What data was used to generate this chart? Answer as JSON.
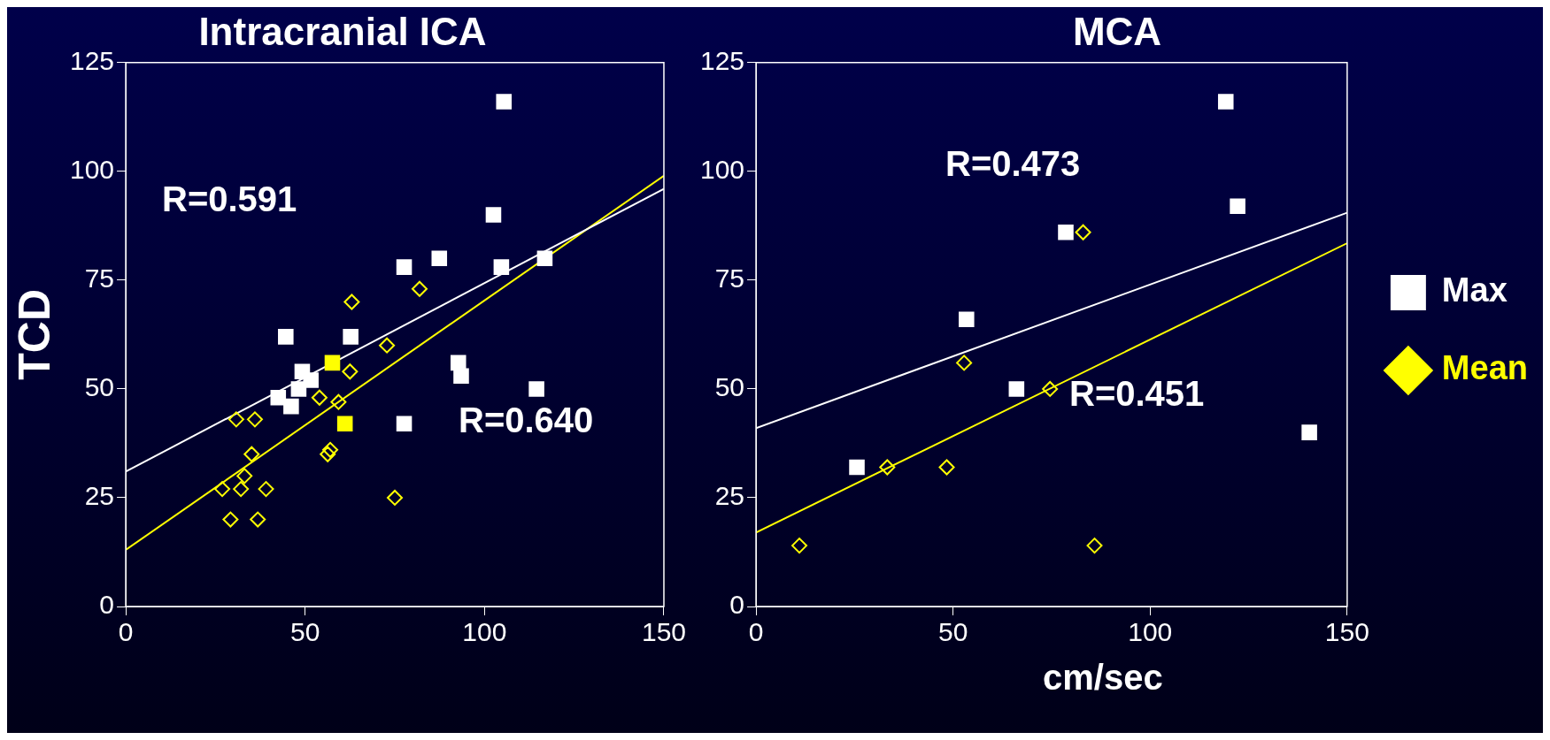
{
  "chart_data": [
    {
      "type": "scatter",
      "title": "Intracranial ICA",
      "ylabel": "TCD",
      "xlim": [
        0,
        150
      ],
      "ylim": [
        0,
        125
      ],
      "xticks": [
        0,
        50,
        100,
        150
      ],
      "yticks": [
        0,
        25,
        50,
        75,
        100,
        125
      ],
      "legend": false,
      "series": [
        {
          "marker": "square",
          "colors": [
            "#ffffff",
            "#ffffff",
            "#ffffff",
            "#ffffff",
            "#ffffff",
            "#ffffff",
            "#ffffff",
            "#ffffff",
            "#ffffff",
            "#ffffff",
            "#ffffff",
            "#ffffff",
            "#ffffff",
            "#ffffff",
            "#ffffff",
            "#ffffff",
            "#ffffff",
            "#ffff00",
            "#ffff00"
          ],
          "x": [
            105.4,
            102.5,
            77.6,
            87.4,
            104.7,
            116.8,
            44.6,
            62.7,
            92.7,
            93.5,
            114.5,
            77.6,
            49.2,
            51.6,
            48.2,
            42.5,
            46.1,
            57.6,
            61.1
          ],
          "values": [
            116,
            90,
            78,
            80,
            78,
            80,
            62,
            62,
            56,
            53,
            50,
            42,
            54,
            52,
            50,
            48,
            46,
            56,
            42
          ]
        },
        {
          "marker": "diamond",
          "color": "#ffff00",
          "x": [
            63,
            81.9,
            72.8,
            62.5,
            54,
            59.3,
            30.8,
            36,
            57,
            56.3,
            35.1,
            33.1,
            26.9,
            32.1,
            39.1,
            75,
            29.2,
            36.8
          ],
          "values": [
            70,
            73,
            60,
            54,
            48,
            47,
            43,
            43,
            36,
            35,
            35,
            30,
            27,
            27,
            27,
            25,
            20,
            20
          ]
        },
        {
          "type": "line",
          "color": "#ffffff",
          "x": [
            0,
            150
          ],
          "values": [
            31,
            96
          ]
        },
        {
          "type": "line",
          "color": "#ffff00",
          "x": [
            0,
            150
          ],
          "values": [
            13,
            99
          ]
        }
      ],
      "annotations": [
        "R=0.591",
        "R=0.640"
      ]
    },
    {
      "type": "scatter",
      "title": "MCA",
      "xlim": [
        0,
        150
      ],
      "ylim": [
        0,
        125
      ],
      "xticks": [
        0,
        50,
        100,
        150
      ],
      "yticks": [
        0,
        25,
        50,
        75,
        100,
        125
      ],
      "legend": "right",
      "series": [
        {
          "name": "Max",
          "marker": "square",
          "color": "#ffffff",
          "x": [
            119.2,
            122.2,
            78.6,
            53.4,
            66.1,
            25.6,
            140.4
          ],
          "values": [
            116,
            92,
            86,
            66,
            50,
            32,
            40
          ]
        },
        {
          "name": "Mean",
          "marker": "diamond",
          "color": "#ffff00",
          "x": [
            83,
            52.8,
            74.6,
            33.3,
            48.4,
            11,
            85.9
          ],
          "values": [
            86,
            56,
            50,
            32,
            32,
            14,
            14
          ]
        },
        {
          "type": "line",
          "color": "#ffffff",
          "x": [
            0,
            150
          ],
          "values": [
            41,
            90.5
          ]
        },
        {
          "type": "line",
          "color": "#ffff00",
          "x": [
            0,
            150
          ],
          "values": [
            17,
            83.5
          ]
        }
      ],
      "annotations": [
        "R=0.473",
        "R=0.451",
        "cm/sec"
      ]
    }
  ]
}
